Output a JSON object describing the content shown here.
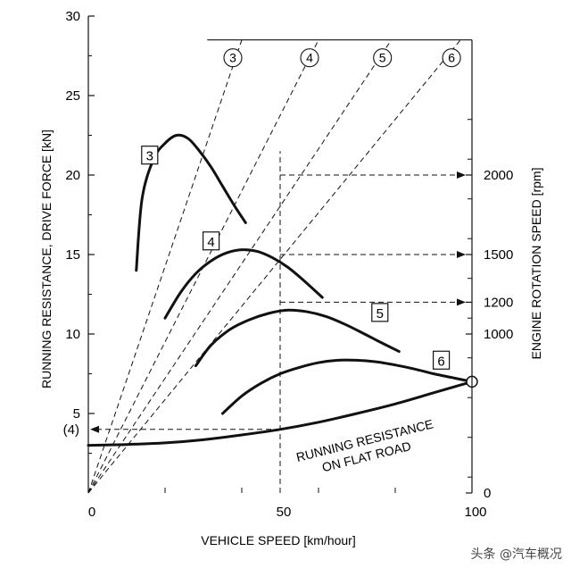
{
  "chart_data": {
    "type": "line",
    "xlabel": "VEHICLE SPEED [km/hour]",
    "ylabel": "RUNNING RESISTANCE, DRIVE FORCE [kN]",
    "y2label": "ENGINE ROTATION SPEED [rpm]",
    "xlim": [
      0,
      100
    ],
    "ylim": [
      0,
      30
    ],
    "x_ticks": [
      0,
      50,
      100
    ],
    "y_ticks": [
      5,
      10,
      15,
      20,
      25,
      30
    ],
    "y2_ticks": [
      {
        "label": "2000",
        "y": 20
      },
      {
        "label": "1500",
        "y": 15
      },
      {
        "label": "1200",
        "y": 12
      },
      {
        "label": "1000",
        "y": 10
      },
      {
        "label": "0",
        "y": 0
      }
    ],
    "marker_4_label": "(4)",
    "marker_4_y": 4,
    "drive_force_series": [
      {
        "name": "3",
        "x": [
          12.5,
          14,
          17,
          20,
          23,
          26,
          29,
          32,
          35,
          38,
          41
        ],
        "y": [
          14,
          18.5,
          21,
          22,
          22.5,
          22.3,
          21.5,
          20.5,
          19.3,
          18.1,
          17
        ]
      },
      {
        "name": "4",
        "x": [
          20,
          24,
          28,
          32,
          36,
          40,
          44,
          48,
          52,
          56,
          61
        ],
        "y": [
          11,
          12.6,
          13.8,
          14.6,
          15.1,
          15.3,
          15.2,
          14.8,
          14.2,
          13.4,
          12.3
        ]
      },
      {
        "name": "5",
        "x": [
          28,
          32,
          37,
          42,
          47,
          52,
          57,
          62,
          67,
          72,
          76,
          81
        ],
        "y": [
          8,
          9.3,
          10.3,
          10.9,
          11.3,
          11.5,
          11.4,
          11.1,
          10.6,
          10,
          9.5,
          8.9
        ]
      },
      {
        "name": "6",
        "x": [
          35,
          40,
          45,
          50,
          55,
          60,
          65,
          70,
          75,
          80,
          85,
          90,
          95,
          100
        ],
        "y": [
          5,
          6.1,
          6.9,
          7.5,
          7.9,
          8.2,
          8.35,
          8.35,
          8.25,
          8.05,
          7.8,
          7.5,
          7.25,
          7
        ]
      }
    ],
    "running_resistance": {
      "label_line1": "RUNNING RESISTANCE",
      "label_line2": "ON FLAT ROAD",
      "x": [
        0,
        10,
        20,
        30,
        40,
        50,
        60,
        70,
        80,
        90,
        100
      ],
      "y": [
        3,
        3.05,
        3.15,
        3.35,
        3.65,
        4,
        4.45,
        5,
        5.6,
        6.3,
        7
      ]
    },
    "gear_rays": [
      {
        "gear": "3",
        "x_top": 40
      },
      {
        "gear": "4",
        "x_top": 60
      },
      {
        "gear": "5",
        "x_top": 79
      },
      {
        "gear": "6",
        "x_top": 97
      }
    ],
    "ray_top_y": 28.5,
    "rpm_arrows": [
      {
        "y": 20,
        "x_from": 50
      },
      {
        "y": 15,
        "x_from": 50
      },
      {
        "y": 12,
        "x_from": 50
      }
    ],
    "operating_point": {
      "x": 100,
      "y": 7
    }
  },
  "watermark": "头条 @汽车概况"
}
